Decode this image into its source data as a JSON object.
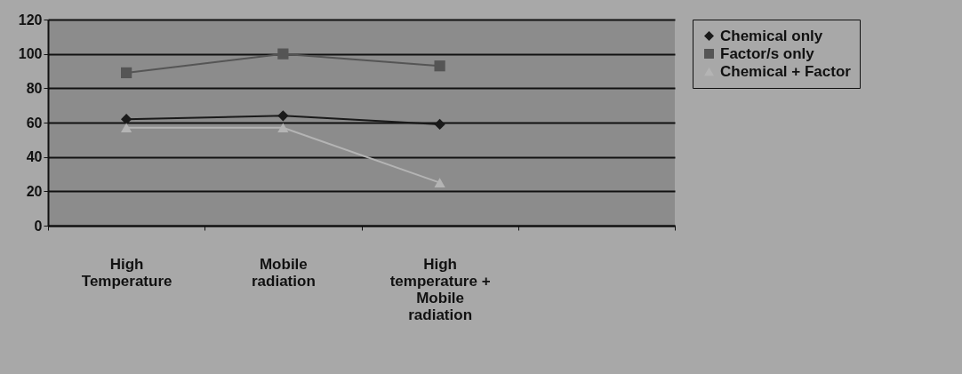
{
  "chart_data": {
    "type": "line",
    "categories": [
      "High Temperature",
      "Mobile radiation",
      "High temperature + Mobile radiation",
      null
    ],
    "series": [
      {
        "name": "Chemical only",
        "color": "#1a1a1a",
        "marker": "diamond",
        "values": [
          62,
          64,
          59,
          null
        ]
      },
      {
        "name": "Factor/s only",
        "color": "#555555",
        "marker": "square",
        "values": [
          89,
          100,
          93,
          null
        ]
      },
      {
        "name": "Chemical + Factor",
        "color": "#b4b4b4",
        "marker": "triangle",
        "values": [
          57,
          57,
          25,
          null
        ]
      }
    ],
    "ylim": [
      0,
      120
    ],
    "yticks": [
      0,
      20,
      40,
      60,
      80,
      100,
      120
    ],
    "grid": "y",
    "legend": "right"
  }
}
